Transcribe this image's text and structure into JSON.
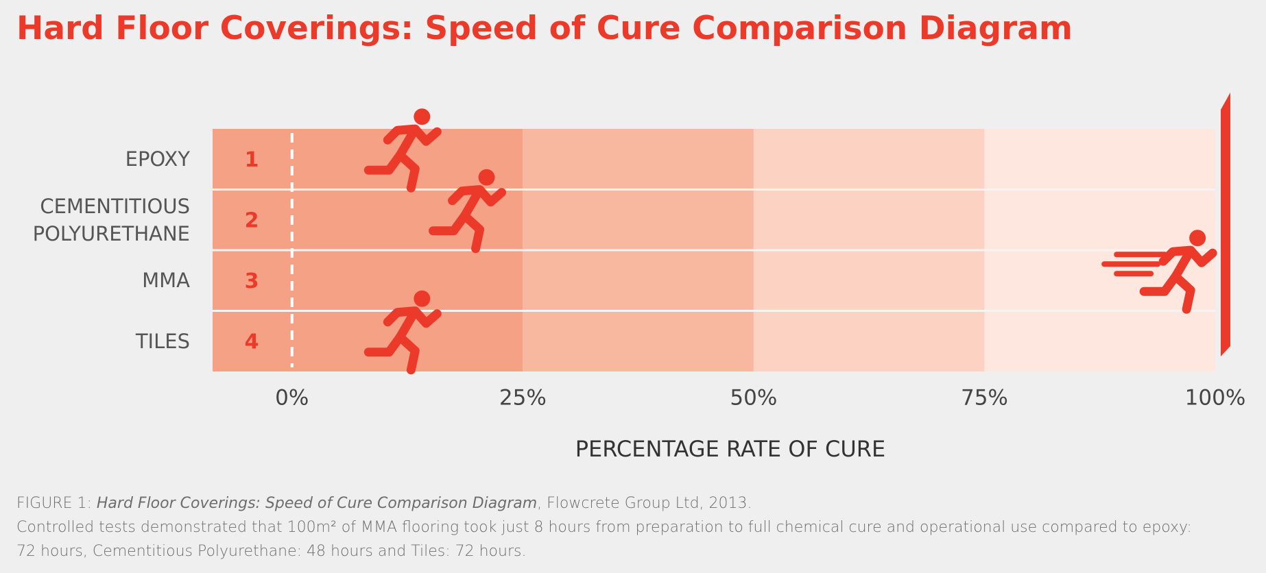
{
  "chart_data": {
    "type": "runner",
    "title": "Hard Floor Coverings: Speed of Cure Comparison Diagram",
    "categories": [
      "EPOXY",
      "CEMENTITIOUS POLYURETHANE",
      "MMA",
      "TILES"
    ],
    "rank_labels": [
      "1",
      "2",
      "3",
      "4"
    ],
    "values": [
      12,
      19,
      96,
      12
    ],
    "color": "#ec3a2a",
    "xlim": [
      -8.6,
      100
    ],
    "xticks": [
      {
        "value": 0,
        "label": "0%"
      },
      {
        "value": 25,
        "label": "25%"
      },
      {
        "value": 50,
        "label": "50%"
      },
      {
        "value": 75,
        "label": "75%"
      },
      {
        "value": 100,
        "label": "100%"
      }
    ],
    "xlabel": "PERCENTAGE RATE OF CURE"
  },
  "caption": {
    "figure": "FIGURE 1:",
    "figure_title": "Hard Floor Coverings: Speed of Cure Comparison Diagram",
    "source": ", Flowcrete Group Ltd, 2013.",
    "note_lines": [
      "Controlled tests demonstrated that 100m² of MMA flooring took just 8 hours from preparation to full chemical cure and operational use compared to epoxy:",
      "72 hours, Cementitious Polyurethane: 48 hours and Tiles: 72 hours."
    ]
  }
}
